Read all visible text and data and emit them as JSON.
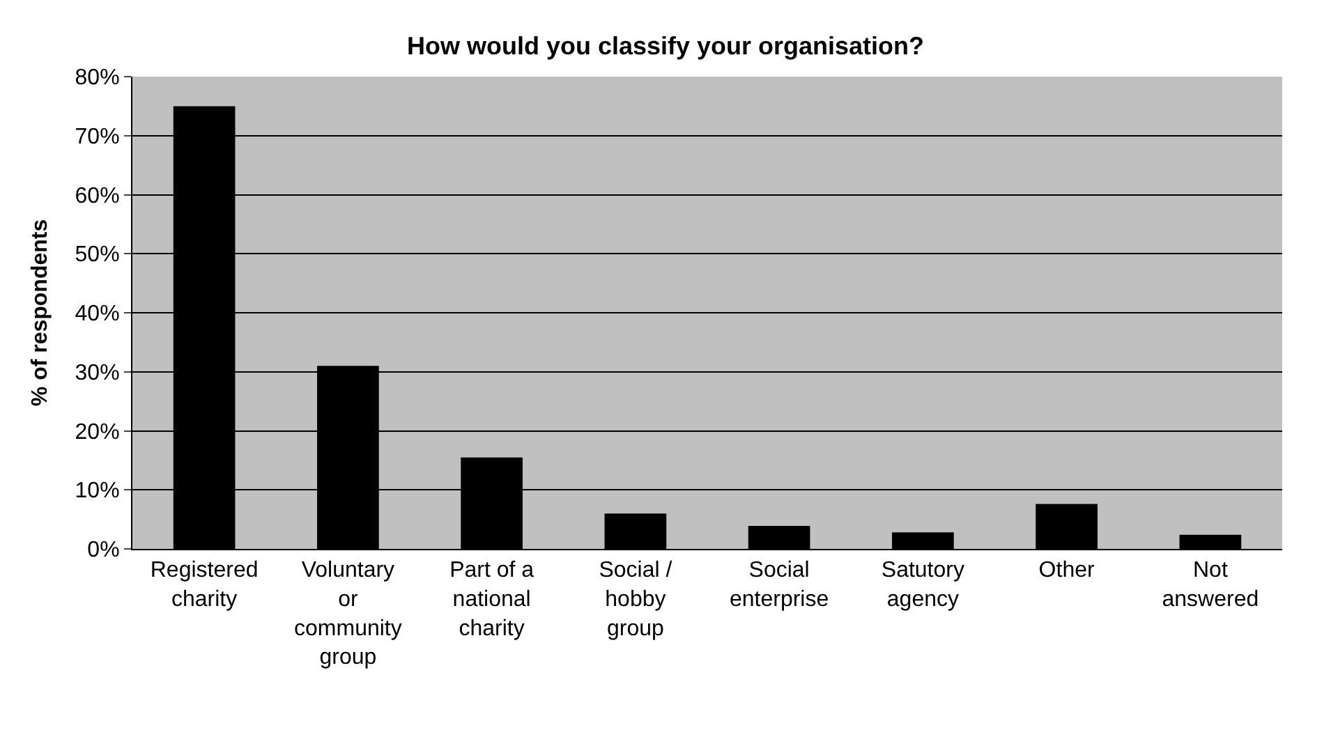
{
  "chart_data": {
    "type": "bar",
    "title": "How would you classify your organisation?",
    "ylabel": "% of respondents",
    "categories": [
      "Registered charity",
      "Voluntary or community group",
      "Part of a national charity",
      "Social / hobby group",
      "Social enterprise",
      "Satutory agency",
      "Other",
      "Not answered"
    ],
    "values": [
      75,
      31,
      15.5,
      6,
      3.9,
      2.8,
      7.6,
      2.4
    ],
    "color": "#000000",
    "ylim": [
      0,
      80
    ],
    "yticks": [
      {
        "value": 0,
        "label": "0%"
      },
      {
        "value": 10,
        "label": "10%"
      },
      {
        "value": 20,
        "label": "20%"
      },
      {
        "value": 30,
        "label": "30%"
      },
      {
        "value": 40,
        "label": "40%"
      },
      {
        "value": 50,
        "label": "50%"
      },
      {
        "value": 60,
        "label": "60%"
      },
      {
        "value": 70,
        "label": "70%"
      },
      {
        "value": 80,
        "label": "80%"
      }
    ],
    "grid": "y"
  }
}
